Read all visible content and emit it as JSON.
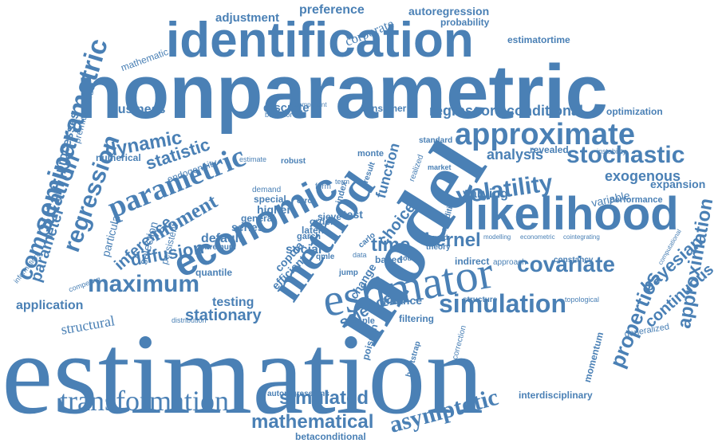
{
  "word_cloud": {
    "color": "#4a80b5",
    "background": "#ffffff",
    "words": [
      "estimation",
      "nonparametric",
      "model",
      "identification",
      "likelihood",
      "estimator",
      "method",
      "economic",
      "approximate",
      "parametric",
      "semiparametric",
      "transformation",
      "simulation",
      "regression",
      "maximum",
      "asymptotic",
      "volatility",
      "stochastic",
      "covariate",
      "computation",
      "moment",
      "mathematical",
      "simulated",
      "approximation",
      "properties",
      "kernel",
      "dynamic",
      "statistic",
      "diffusion",
      "bayesian",
      "continuous",
      "inference",
      "stationary",
      "structural",
      "time",
      "science",
      "application",
      "testing",
      "exogenous",
      "analysis",
      "conditional",
      "regressor",
      "parameter",
      "processes",
      "function",
      "preference",
      "adjustment",
      "corporate",
      "autoregression",
      "probability",
      "estimatortime",
      "mathematic",
      "business",
      "discrete",
      "consumer",
      "optimization",
      "revealed",
      "expansion",
      "variable",
      "varying",
      "performance",
      "numerical",
      "endogeneity",
      "selection",
      "particular",
      "persistent",
      "premiumvalue",
      "latent",
      "higher",
      "series",
      "default",
      "special",
      "general",
      "order",
      "social",
      "test",
      "efficient",
      "copula",
      "jump",
      "change",
      "choice",
      "based",
      "indirect",
      "approach",
      "constancy",
      "finance",
      "structure",
      "topological",
      "sample",
      "filtering",
      "poisson",
      "bootstrap",
      "correction",
      "momentum",
      "generalized",
      "interdisciplinary",
      "betaconditional",
      "autoregressions",
      "information",
      "competing",
      "quantile",
      "distribution",
      "extremum",
      "robust",
      "monte",
      "carlo",
      "garch",
      "sieve",
      "market",
      "bound",
      "theory",
      "count",
      "condition",
      "econometric",
      "cointegrating",
      "modelling",
      "computational",
      "instability",
      "standard",
      "component",
      "behavior",
      "estimate",
      "data",
      "error",
      "qmle",
      "result",
      "form",
      "index",
      "demand",
      "term",
      "realized"
    ]
  }
}
